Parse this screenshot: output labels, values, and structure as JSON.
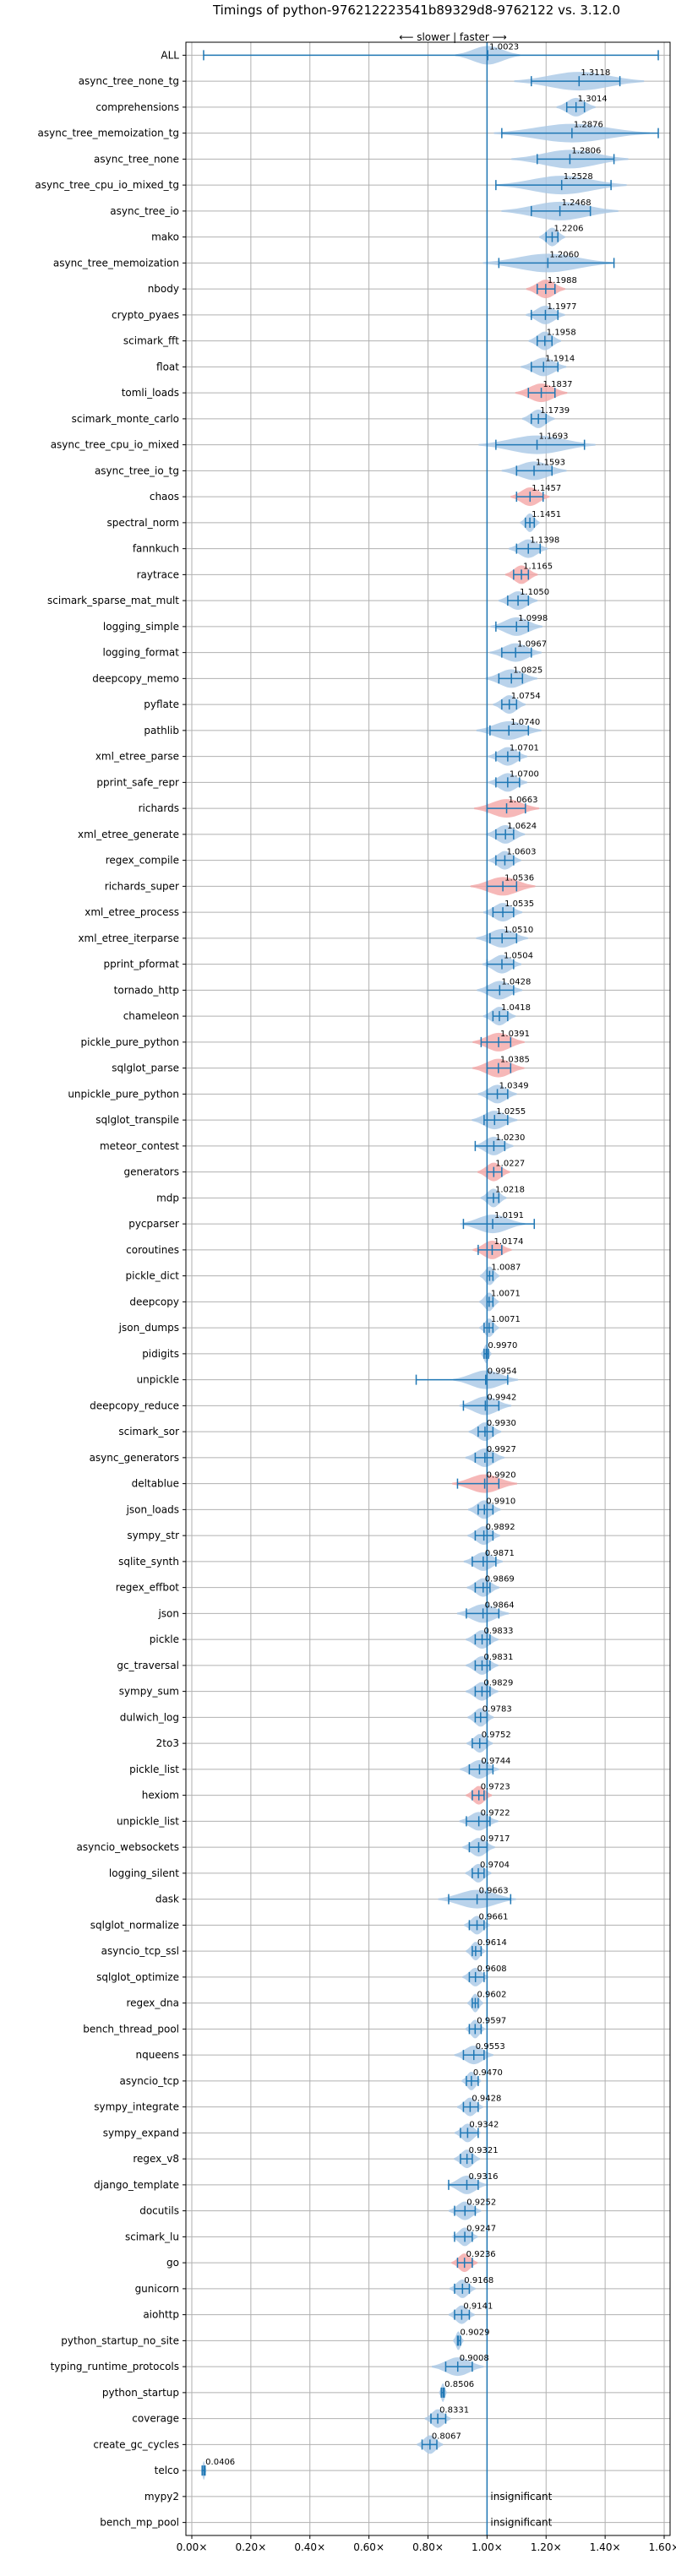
{
  "chart_data": {
    "type": "violin",
    "title": "Timings of python-976212223541b89329d8-9762122 vs. 3.12.0",
    "direction_label": "⟵ slower | faster ⟶",
    "xlim": [
      -0.02,
      1.62
    ],
    "x_ticks": [
      0.0,
      0.2,
      0.4,
      0.6,
      0.8,
      1.0,
      1.2,
      1.4,
      1.6
    ],
    "x_tick_labels": [
      "0.00×",
      "0.20×",
      "0.40×",
      "0.60×",
      "0.80×",
      "1.00×",
      "1.20×",
      "1.40×",
      "1.60×"
    ],
    "grid": true,
    "reference_line": 1.0,
    "colors": {
      "violin": "#a9c8e6",
      "whisker": "#1f77b4",
      "highlight": "#f4a6a6",
      "reference": "#1f77b4"
    },
    "benchmarks": [
      {
        "name": "ALL",
        "value": 1.0023,
        "label": "1.0023",
        "min": 0.04,
        "max": 1.58,
        "spread": 0.05,
        "highlight": false
      },
      {
        "name": "async_tree_none_tg",
        "value": 1.3118,
        "label": "1.3118",
        "min": 1.15,
        "max": 1.45,
        "spread": 0.1,
        "highlight": false
      },
      {
        "name": "comprehensions",
        "value": 1.3014,
        "label": "1.3014",
        "min": 1.27,
        "max": 1.33,
        "spread": 0.03,
        "highlight": false
      },
      {
        "name": "async_tree_memoization_tg",
        "value": 1.2876,
        "label": "1.2876",
        "min": 1.05,
        "max": 1.58,
        "spread": 0.12,
        "highlight": false
      },
      {
        "name": "async_tree_none",
        "value": 1.2806,
        "label": "1.2806",
        "min": 1.17,
        "max": 1.43,
        "spread": 0.09,
        "highlight": false
      },
      {
        "name": "async_tree_cpu_io_mixed_tg",
        "value": 1.2528,
        "label": "1.2528",
        "min": 1.03,
        "max": 1.42,
        "spread": 0.1,
        "highlight": false
      },
      {
        "name": "async_tree_io",
        "value": 1.2468,
        "label": "1.2468",
        "min": 1.15,
        "max": 1.35,
        "spread": 0.09,
        "highlight": false
      },
      {
        "name": "mako",
        "value": 1.2206,
        "label": "1.2206",
        "min": 1.2,
        "max": 1.24,
        "spread": 0.02,
        "highlight": false
      },
      {
        "name": "async_tree_memoization",
        "value": 1.206,
        "label": "1.2060",
        "min": 1.04,
        "max": 1.43,
        "spread": 0.1,
        "highlight": false
      },
      {
        "name": "nbody",
        "value": 1.1988,
        "label": "1.1988",
        "min": 1.17,
        "max": 1.23,
        "spread": 0.03,
        "highlight": true
      },
      {
        "name": "crypto_pyaes",
        "value": 1.1977,
        "label": "1.1977",
        "min": 1.15,
        "max": 1.24,
        "spread": 0.03,
        "highlight": false
      },
      {
        "name": "scimark_fft",
        "value": 1.1958,
        "label": "1.1958",
        "min": 1.17,
        "max": 1.22,
        "spread": 0.025,
        "highlight": false
      },
      {
        "name": "float",
        "value": 1.1914,
        "label": "1.1914",
        "min": 1.15,
        "max": 1.24,
        "spread": 0.035,
        "highlight": false
      },
      {
        "name": "tomli_loads",
        "value": 1.1837,
        "label": "1.1837",
        "min": 1.14,
        "max": 1.23,
        "spread": 0.04,
        "highlight": true
      },
      {
        "name": "scimark_monte_carlo",
        "value": 1.1739,
        "label": "1.1739",
        "min": 1.15,
        "max": 1.2,
        "spread": 0.025,
        "highlight": false
      },
      {
        "name": "async_tree_cpu_io_mixed",
        "value": 1.1693,
        "label": "1.1693",
        "min": 1.03,
        "max": 1.33,
        "spread": 0.09,
        "highlight": false
      },
      {
        "name": "async_tree_io_tg",
        "value": 1.1593,
        "label": "1.1593",
        "min": 1.1,
        "max": 1.22,
        "spread": 0.05,
        "highlight": false
      },
      {
        "name": "chaos",
        "value": 1.1457,
        "label": "1.1457",
        "min": 1.1,
        "max": 1.19,
        "spread": 0.03,
        "highlight": true
      },
      {
        "name": "spectral_norm",
        "value": 1.1451,
        "label": "1.1451",
        "min": 1.13,
        "max": 1.16,
        "spread": 0.015,
        "highlight": false
      },
      {
        "name": "fannkuch",
        "value": 1.1398,
        "label": "1.1398",
        "min": 1.1,
        "max": 1.18,
        "spread": 0.03,
        "highlight": false
      },
      {
        "name": "raytrace",
        "value": 1.1165,
        "label": "1.1165",
        "min": 1.09,
        "max": 1.14,
        "spread": 0.025,
        "highlight": true
      },
      {
        "name": "scimark_sparse_mat_mult",
        "value": 1.105,
        "label": "1.1050",
        "min": 1.07,
        "max": 1.14,
        "spread": 0.03,
        "highlight": false
      },
      {
        "name": "logging_simple",
        "value": 1.0998,
        "label": "1.0998",
        "min": 1.03,
        "max": 1.14,
        "spread": 0.04,
        "highlight": false
      },
      {
        "name": "logging_format",
        "value": 1.0967,
        "label": "1.0967",
        "min": 1.05,
        "max": 1.15,
        "spread": 0.04,
        "highlight": false
      },
      {
        "name": "deepcopy_memo",
        "value": 1.0825,
        "label": "1.0825",
        "min": 1.04,
        "max": 1.12,
        "spread": 0.04,
        "highlight": false
      },
      {
        "name": "pyflate",
        "value": 1.0754,
        "label": "1.0754",
        "min": 1.05,
        "max": 1.1,
        "spread": 0.025,
        "highlight": false
      },
      {
        "name": "pathlib",
        "value": 1.074,
        "label": "1.0740",
        "min": 1.01,
        "max": 1.14,
        "spread": 0.05,
        "highlight": false
      },
      {
        "name": "xml_etree_parse",
        "value": 1.0701,
        "label": "1.0701",
        "min": 1.03,
        "max": 1.11,
        "spread": 0.03,
        "highlight": false
      },
      {
        "name": "pprint_safe_repr",
        "value": 1.07,
        "label": "1.0700",
        "min": 1.03,
        "max": 1.11,
        "spread": 0.03,
        "highlight": false
      },
      {
        "name": "richards",
        "value": 1.0663,
        "label": "1.0663",
        "min": 1.0,
        "max": 1.13,
        "spread": 0.05,
        "highlight": true
      },
      {
        "name": "xml_etree_generate",
        "value": 1.0624,
        "label": "1.0624",
        "min": 1.03,
        "max": 1.09,
        "spread": 0.03,
        "highlight": false
      },
      {
        "name": "regex_compile",
        "value": 1.0603,
        "label": "1.0603",
        "min": 1.03,
        "max": 1.09,
        "spread": 0.025,
        "highlight": false
      },
      {
        "name": "richards_super",
        "value": 1.0536,
        "label": "1.0536",
        "min": 1.0,
        "max": 1.1,
        "spread": 0.05,
        "highlight": true
      },
      {
        "name": "xml_etree_process",
        "value": 1.0535,
        "label": "1.0535",
        "min": 1.02,
        "max": 1.09,
        "spread": 0.03,
        "highlight": false
      },
      {
        "name": "xml_etree_iterparse",
        "value": 1.051,
        "label": "1.0510",
        "min": 1.01,
        "max": 1.1,
        "spread": 0.04,
        "highlight": false
      },
      {
        "name": "pprint_pformat",
        "value": 1.0504,
        "label": "1.0504",
        "min": 1.0,
        "max": 1.09,
        "spread": 0.03,
        "highlight": false
      },
      {
        "name": "tornado_http",
        "value": 1.0428,
        "label": "1.0428",
        "min": 1.0,
        "max": 1.09,
        "spread": 0.035,
        "highlight": false
      },
      {
        "name": "chameleon",
        "value": 1.0418,
        "label": "1.0418",
        "min": 1.02,
        "max": 1.07,
        "spread": 0.025,
        "highlight": false
      },
      {
        "name": "pickle_pure_python",
        "value": 1.0391,
        "label": "1.0391",
        "min": 0.98,
        "max": 1.08,
        "spread": 0.04,
        "highlight": true
      },
      {
        "name": "sqlglot_parse",
        "value": 1.0385,
        "label": "1.0385",
        "min": 1.0,
        "max": 1.08,
        "spread": 0.04,
        "highlight": true
      },
      {
        "name": "unpickle_pure_python",
        "value": 1.0349,
        "label": "1.0349",
        "min": 1.0,
        "max": 1.07,
        "spread": 0.03,
        "highlight": false
      },
      {
        "name": "sqlglot_transpile",
        "value": 1.0255,
        "label": "1.0255",
        "min": 0.99,
        "max": 1.07,
        "spread": 0.035,
        "highlight": false
      },
      {
        "name": "meteor_contest",
        "value": 1.023,
        "label": "1.0230",
        "min": 0.96,
        "max": 1.06,
        "spread": 0.03,
        "highlight": false
      },
      {
        "name": "generators",
        "value": 1.0227,
        "label": "1.0227",
        "min": 1.0,
        "max": 1.05,
        "spread": 0.025,
        "highlight": true
      },
      {
        "name": "mdp",
        "value": 1.0218,
        "label": "1.0218",
        "min": 1.0,
        "max": 1.04,
        "spread": 0.02,
        "highlight": false
      },
      {
        "name": "pycparser",
        "value": 1.0191,
        "label": "1.0191",
        "min": 0.92,
        "max": 1.16,
        "spread": 0.05,
        "highlight": false
      },
      {
        "name": "coroutines",
        "value": 1.0174,
        "label": "1.0174",
        "min": 0.97,
        "max": 1.05,
        "spread": 0.03,
        "highlight": true
      },
      {
        "name": "pickle_dict",
        "value": 1.0087,
        "label": "1.0087",
        "min": 1.0,
        "max": 1.02,
        "spread": 0.015,
        "highlight": false
      },
      {
        "name": "deepcopy",
        "value": 1.0071,
        "label": "1.0071",
        "min": 1.0,
        "max": 1.02,
        "spread": 0.015,
        "highlight": false
      },
      {
        "name": "json_dumps",
        "value": 1.0071,
        "label": "1.0071",
        "min": 0.99,
        "max": 1.02,
        "spread": 0.015,
        "highlight": false
      },
      {
        "name": "pidigits",
        "value": 0.997,
        "label": "0.9970",
        "min": 0.99,
        "max": 1.005,
        "spread": 0.008,
        "highlight": false
      },
      {
        "name": "unpickle",
        "value": 0.9954,
        "label": "0.9954",
        "min": 0.76,
        "max": 1.07,
        "spread": 0.05,
        "highlight": false
      },
      {
        "name": "deepcopy_reduce",
        "value": 0.9942,
        "label": "0.9942",
        "min": 0.92,
        "max": 1.04,
        "spread": 0.04,
        "highlight": false
      },
      {
        "name": "scimark_sor",
        "value": 0.993,
        "label": "0.9930",
        "min": 0.97,
        "max": 1.02,
        "spread": 0.025,
        "highlight": false
      },
      {
        "name": "async_generators",
        "value": 0.9927,
        "label": "0.9927",
        "min": 0.96,
        "max": 1.02,
        "spread": 0.03,
        "highlight": false
      },
      {
        "name": "deltablue",
        "value": 0.992,
        "label": "0.9920",
        "min": 0.9,
        "max": 1.04,
        "spread": 0.05,
        "highlight": true
      },
      {
        "name": "json_loads",
        "value": 0.991,
        "label": "0.9910",
        "min": 0.97,
        "max": 1.02,
        "spread": 0.025,
        "highlight": false
      },
      {
        "name": "sympy_str",
        "value": 0.9892,
        "label": "0.9892",
        "min": 0.96,
        "max": 1.02,
        "spread": 0.025,
        "highlight": false
      },
      {
        "name": "sqlite_synth",
        "value": 0.9871,
        "label": "0.9871",
        "min": 0.95,
        "max": 1.03,
        "spread": 0.03,
        "highlight": false
      },
      {
        "name": "regex_effbot",
        "value": 0.9869,
        "label": "0.9869",
        "min": 0.96,
        "max": 1.01,
        "spread": 0.025,
        "highlight": false
      },
      {
        "name": "json",
        "value": 0.9864,
        "label": "0.9864",
        "min": 0.93,
        "max": 1.04,
        "spread": 0.04,
        "highlight": false
      },
      {
        "name": "pickle",
        "value": 0.9833,
        "label": "0.9833",
        "min": 0.96,
        "max": 1.01,
        "spread": 0.025,
        "highlight": false
      },
      {
        "name": "gc_traversal",
        "value": 0.9831,
        "label": "0.9831",
        "min": 0.96,
        "max": 1.01,
        "spread": 0.025,
        "highlight": false
      },
      {
        "name": "sympy_sum",
        "value": 0.9829,
        "label": "0.9829",
        "min": 0.96,
        "max": 1.01,
        "spread": 0.025,
        "highlight": false
      },
      {
        "name": "dulwich_log",
        "value": 0.9783,
        "label": "0.9783",
        "min": 0.96,
        "max": 1.0,
        "spread": 0.02,
        "highlight": false
      },
      {
        "name": "2to3",
        "value": 0.9752,
        "label": "0.9752",
        "min": 0.95,
        "max": 1.0,
        "spread": 0.02,
        "highlight": false
      },
      {
        "name": "pickle_list",
        "value": 0.9744,
        "label": "0.9744",
        "min": 0.94,
        "max": 1.02,
        "spread": 0.03,
        "highlight": false
      },
      {
        "name": "hexiom",
        "value": 0.9723,
        "label": "0.9723",
        "min": 0.95,
        "max": 0.99,
        "spread": 0.02,
        "highlight": true
      },
      {
        "name": "unpickle_list",
        "value": 0.9722,
        "label": "0.9722",
        "min": 0.93,
        "max": 1.01,
        "spread": 0.03,
        "highlight": false
      },
      {
        "name": "asyncio_websockets",
        "value": 0.9717,
        "label": "0.9717",
        "min": 0.94,
        "max": 1.0,
        "spread": 0.025,
        "highlight": false
      },
      {
        "name": "logging_silent",
        "value": 0.9704,
        "label": "0.9704",
        "min": 0.95,
        "max": 0.99,
        "spread": 0.02,
        "highlight": false
      },
      {
        "name": "dask",
        "value": 0.9663,
        "label": "0.9663",
        "min": 0.87,
        "max": 1.08,
        "spread": 0.06,
        "highlight": false
      },
      {
        "name": "sqlglot_normalize",
        "value": 0.9661,
        "label": "0.9661",
        "min": 0.94,
        "max": 0.99,
        "spread": 0.02,
        "highlight": false
      },
      {
        "name": "asyncio_tcp_ssl",
        "value": 0.9614,
        "label": "0.9614",
        "min": 0.95,
        "max": 0.98,
        "spread": 0.015,
        "highlight": false
      },
      {
        "name": "sqlglot_optimize",
        "value": 0.9608,
        "label": "0.9608",
        "min": 0.94,
        "max": 0.99,
        "spread": 0.02,
        "highlight": false
      },
      {
        "name": "regex_dna",
        "value": 0.9602,
        "label": "0.9602",
        "min": 0.95,
        "max": 0.97,
        "spread": 0.012,
        "highlight": false
      },
      {
        "name": "bench_thread_pool",
        "value": 0.9597,
        "label": "0.9597",
        "min": 0.94,
        "max": 0.98,
        "spread": 0.015,
        "highlight": false
      },
      {
        "name": "nqueens",
        "value": 0.9553,
        "label": "0.9553",
        "min": 0.92,
        "max": 0.99,
        "spread": 0.03,
        "highlight": false
      },
      {
        "name": "asyncio_tcp",
        "value": 0.947,
        "label": "0.9470",
        "min": 0.93,
        "max": 0.97,
        "spread": 0.015,
        "highlight": false
      },
      {
        "name": "sympy_integrate",
        "value": 0.9428,
        "label": "0.9428",
        "min": 0.92,
        "max": 0.97,
        "spread": 0.02,
        "highlight": false
      },
      {
        "name": "sympy_expand",
        "value": 0.9342,
        "label": "0.9342",
        "min": 0.91,
        "max": 0.97,
        "spread": 0.02,
        "highlight": false
      },
      {
        "name": "regex_v8",
        "value": 0.9321,
        "label": "0.9321",
        "min": 0.91,
        "max": 0.95,
        "spread": 0.02,
        "highlight": false
      },
      {
        "name": "django_template",
        "value": 0.9316,
        "label": "0.9316",
        "min": 0.87,
        "max": 0.97,
        "spread": 0.03,
        "highlight": false
      },
      {
        "name": "docutils",
        "value": 0.9252,
        "label": "0.9252",
        "min": 0.89,
        "max": 0.96,
        "spread": 0.025,
        "highlight": false
      },
      {
        "name": "scimark_lu",
        "value": 0.9247,
        "label": "0.9247",
        "min": 0.89,
        "max": 0.95,
        "spread": 0.02,
        "highlight": false
      },
      {
        "name": "go",
        "value": 0.9236,
        "label": "0.9236",
        "min": 0.9,
        "max": 0.95,
        "spread": 0.02,
        "highlight": true
      },
      {
        "name": "gunicorn",
        "value": 0.9168,
        "label": "0.9168",
        "min": 0.89,
        "max": 0.94,
        "spread": 0.02,
        "highlight": false
      },
      {
        "name": "aiohttp",
        "value": 0.9141,
        "label": "0.9141",
        "min": 0.89,
        "max": 0.94,
        "spread": 0.02,
        "highlight": false
      },
      {
        "name": "python_startup_no_site",
        "value": 0.9029,
        "label": "0.9029",
        "min": 0.9,
        "max": 0.91,
        "spread": 0.008,
        "highlight": false
      },
      {
        "name": "typing_runtime_protocols",
        "value": 0.9008,
        "label": "0.9008",
        "min": 0.86,
        "max": 0.95,
        "spread": 0.04,
        "highlight": false
      },
      {
        "name": "python_startup",
        "value": 0.8506,
        "label": "0.8506",
        "min": 0.845,
        "max": 0.855,
        "spread": 0.006,
        "highlight": false
      },
      {
        "name": "coverage",
        "value": 0.8331,
        "label": "0.8331",
        "min": 0.81,
        "max": 0.86,
        "spread": 0.02,
        "highlight": false
      },
      {
        "name": "create_gc_cycles",
        "value": 0.8067,
        "label": "0.8067",
        "min": 0.78,
        "max": 0.83,
        "spread": 0.02,
        "highlight": false
      },
      {
        "name": "telco",
        "value": 0.0406,
        "label": "0.0406",
        "min": 0.035,
        "max": 0.045,
        "spread": 0.004,
        "highlight": false
      },
      {
        "name": "mypy2",
        "value": null,
        "label": "insignificant",
        "min": null,
        "max": null,
        "spread": 0,
        "highlight": false
      },
      {
        "name": "bench_mp_pool",
        "value": null,
        "label": "insignificant",
        "min": null,
        "max": null,
        "spread": 0,
        "highlight": false
      }
    ]
  }
}
